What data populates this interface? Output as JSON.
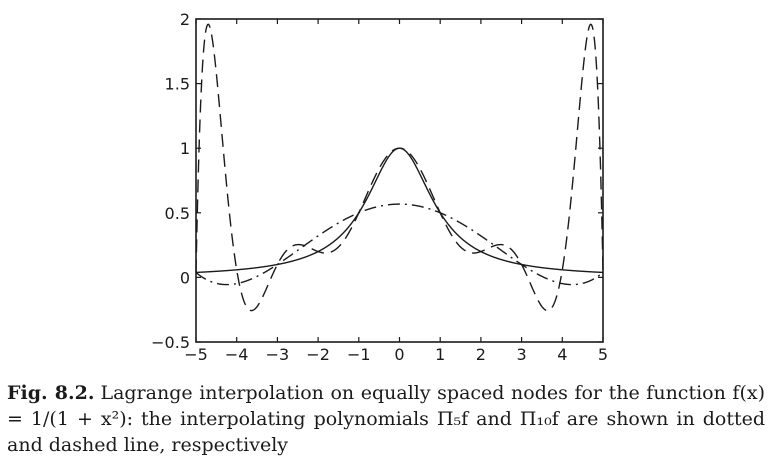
{
  "chart_data": {
    "type": "line",
    "title": "",
    "xlabel": "",
    "ylabel": "",
    "xlim": [
      -5,
      5
    ],
    "ylim": [
      -0.5,
      2
    ],
    "x_ticks": [
      -5,
      -4,
      -3,
      -2,
      -1,
      0,
      1,
      2,
      3,
      4,
      5
    ],
    "y_ticks": [
      -0.5,
      0,
      0.5,
      1,
      1.5,
      2
    ],
    "x_tick_labels": [
      "−5",
      "−4",
      "−3",
      "−2",
      "−1",
      "0",
      "1",
      "2",
      "3",
      "4",
      "5"
    ],
    "y_tick_labels": [
      "−0.5",
      "0",
      "0.5",
      "1",
      "1.5",
      "2"
    ],
    "grid": false,
    "series": [
      {
        "style": "solid",
        "function": "1/(1+x^2)",
        "nodes": [],
        "x": [
          -5,
          -4.5,
          -4,
          -3.5,
          -3,
          -2.5,
          -2,
          -1.5,
          -1,
          -0.5,
          0,
          0.5,
          1,
          1.5,
          2,
          2.5,
          3,
          3.5,
          4,
          4.5,
          5
        ],
        "values": [
          0.038,
          0.047,
          0.059,
          0.075,
          0.1,
          0.138,
          0.2,
          0.308,
          0.5,
          0.8,
          1.0,
          0.8,
          0.5,
          0.308,
          0.2,
          0.138,
          0.1,
          0.075,
          0.059,
          0.047,
          0.038
        ]
      },
      {
        "style": "dashdot",
        "function": "interpolating polynomial of degree 5",
        "nodes": [
          -5,
          -3,
          -1,
          1,
          3,
          5
        ],
        "x": [
          -5,
          -4.5,
          -4,
          -3.5,
          -3,
          -2.5,
          -2,
          -1.5,
          -1,
          -0.5,
          0,
          0.5,
          1,
          1.5,
          2,
          2.5,
          3,
          3.5,
          4,
          4.5,
          5
        ],
        "values": [
          0.038,
          -0.041,
          -0.068,
          -0.036,
          0.1,
          0.214,
          0.31,
          0.42,
          0.5,
          0.55,
          0.56,
          0.55,
          0.5,
          0.42,
          0.31,
          0.214,
          0.1,
          -0.036,
          -0.068,
          -0.041,
          0.038
        ]
      },
      {
        "style": "dashed",
        "function": "interpolating polynomial of degree 10",
        "nodes": [
          -5,
          -4,
          -3,
          -2,
          -1,
          0,
          1,
          2,
          3,
          4,
          5
        ],
        "x": [
          -5,
          -4.5,
          -4,
          -3.5,
          -3,
          -2.5,
          -2,
          -1.5,
          -1,
          -0.5,
          0,
          0.5,
          1,
          1.5,
          2,
          2.5,
          3,
          3.5,
          4,
          4.5,
          5
        ],
        "values": [
          0.038,
          1.58,
          0.059,
          -0.23,
          0.1,
          0.25,
          0.2,
          0.24,
          0.5,
          0.84,
          1.0,
          0.84,
          0.5,
          0.24,
          0.2,
          0.25,
          0.1,
          -0.23,
          0.059,
          1.58,
          0.038
        ]
      }
    ]
  },
  "caption": {
    "label": "Fig. 8.2.",
    "text": "Lagrange interpolation on equally spaced nodes for the function f(x) = 1/(1 + x²): the interpolating polynomials Π₅f and Π₁₀f are shown in dotted and dashed line, respectively"
  }
}
